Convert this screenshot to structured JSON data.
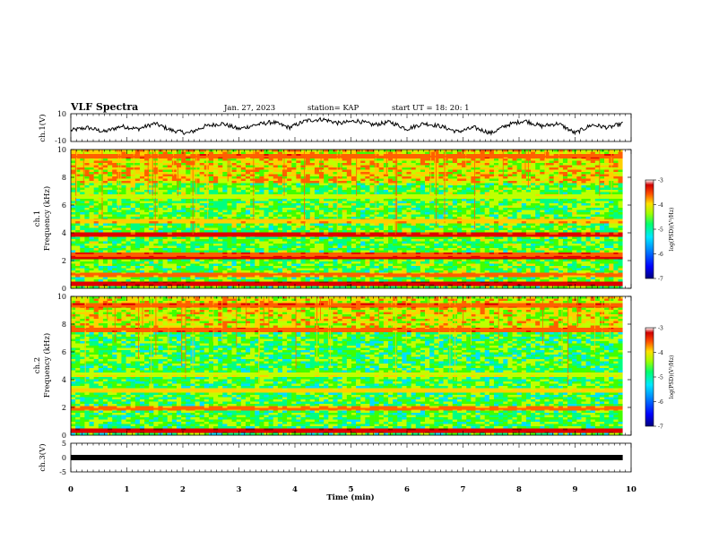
{
  "header": {
    "title": "VLF Spectra",
    "date": "Jan. 27, 2023",
    "station": "station= KAP",
    "start": "start  UT  =  18: 20: 1"
  },
  "colors": {
    "trace": "#000000",
    "colormap": [
      "#00007f",
      "#0000ff",
      "#0080ff",
      "#00e0ff",
      "#00ff80",
      "#40ff00",
      "#c0ff00",
      "#ffd000",
      "#ff6000",
      "#e00000",
      "#800000"
    ]
  },
  "chart_data": [
    {
      "type": "line",
      "panel": "ch1-waveform",
      "ylabel": "ch.1(V)",
      "ylim": [
        -10,
        10
      ],
      "yticks": [
        "10",
        "-10"
      ],
      "xlim": [
        0,
        10
      ],
      "x_unit": "min",
      "series": [
        {
          "x": [
            0,
            0.3,
            0.6,
            0.9,
            1.2,
            1.5,
            1.8,
            2.1,
            2.4,
            2.7,
            3.0,
            3.3,
            3.6,
            3.9,
            4.2,
            4.5,
            4.8,
            5.1,
            5.4,
            5.7,
            6.0,
            6.3,
            6.6,
            6.9,
            7.2,
            7.5,
            7.8,
            8.1,
            8.4,
            8.7,
            9.0,
            9.3,
            9.6,
            9.85
          ],
          "values": [
            -2,
            0,
            -3,
            1,
            -1,
            3,
            -2,
            -4,
            1,
            3,
            -1,
            2,
            4,
            0,
            5,
            6,
            3,
            5,
            2,
            4,
            -1,
            3,
            1,
            -3,
            0,
            -4,
            2,
            5,
            1,
            3,
            -4,
            2,
            0,
            3
          ]
        }
      ]
    },
    {
      "type": "heatmap",
      "panel": "ch1-spectrogram",
      "ylabel_line1": "ch.1",
      "ylabel_line2": "Frequency (kHz)",
      "ylim": [
        0,
        10
      ],
      "yticks": [
        "0",
        "2",
        "4",
        "6",
        "8",
        "10"
      ],
      "xlim": [
        0,
        9.85
      ],
      "colorbar": {
        "label": "log(PSD)(V²/Hz)",
        "range": [
          -7,
          -3
        ],
        "ticks": [
          "-3",
          "-4",
          "-5",
          "-6",
          "-7"
        ]
      },
      "bands_khz": [
        {
          "f": 0.35,
          "level": -3.5
        },
        {
          "f": 1.0,
          "level": -4.0
        },
        {
          "f": 2.2,
          "level": -3.4
        },
        {
          "f": 2.4,
          "level": -3.8
        },
        {
          "f": 3.8,
          "level": -3.6
        },
        {
          "f": 4.9,
          "level": -4.2
        },
        {
          "f": 6.6,
          "level": -4.6
        },
        {
          "f": 9.5,
          "level": -3.9
        }
      ],
      "background_level": -5.0
    },
    {
      "type": "heatmap",
      "panel": "ch2-spectrogram",
      "ylabel_line1": "ch.2",
      "ylabel_line2": "Frequency (kHz)",
      "ylim": [
        0,
        10
      ],
      "yticks": [
        "0",
        "2",
        "4",
        "6",
        "8",
        "10"
      ],
      "xlim": [
        0,
        9.85
      ],
      "colorbar": {
        "label": "log(PSD)(V²/Hz)",
        "range": [
          -7,
          -3
        ],
        "ticks": [
          "-3",
          "-4",
          "-5",
          "-6",
          "-7"
        ]
      },
      "bands_khz": [
        {
          "f": 0.3,
          "level": -3.5
        },
        {
          "f": 1.9,
          "level": -4.0
        },
        {
          "f": 3.2,
          "level": -4.3
        },
        {
          "f": 4.4,
          "level": -4.5
        },
        {
          "f": 7.6,
          "level": -3.9
        },
        {
          "f": 9.3,
          "level": -3.8
        }
      ],
      "background_level": -5.1
    },
    {
      "type": "line",
      "panel": "ch3-waveform",
      "ylabel": "ch.3(V)",
      "ylim": [
        -5,
        5
      ],
      "yticks": [
        "5",
        "0",
        "-5"
      ],
      "xlim": [
        0,
        10
      ],
      "series": [
        {
          "x": [
            0,
            9.85
          ],
          "values": [
            0,
            0
          ]
        }
      ]
    }
  ],
  "xaxis": {
    "label": "Time (min)",
    "ticks": [
      "0",
      "1",
      "2",
      "3",
      "4",
      "5",
      "6",
      "7",
      "8",
      "9",
      "10"
    ]
  }
}
